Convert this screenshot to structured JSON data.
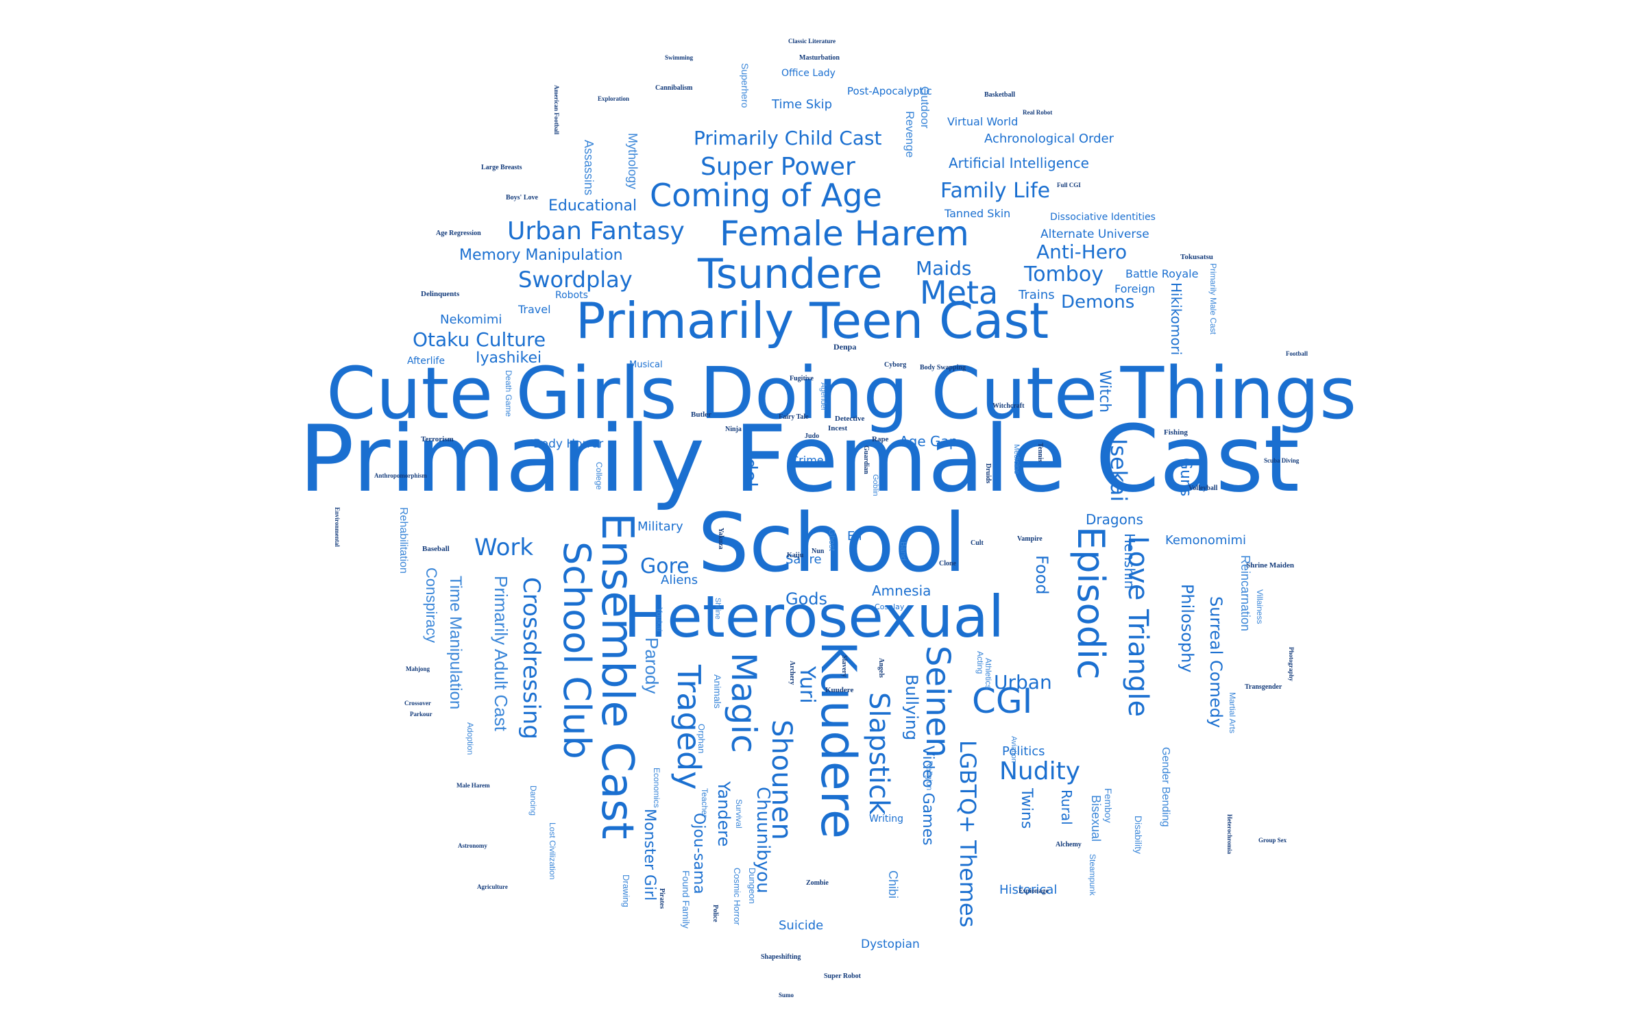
{
  "colors": {
    "primary": "#1a6fd0",
    "light": "#3a86d8",
    "dark": "#123a7a",
    "background": "#ffffff"
  },
  "words": [
    "Primarily Female Cast",
    "Cute Girls Doing Cute Things",
    "School",
    "Heterosexual",
    "Primarily Teen Cast",
    "Kuudere",
    "Ensemble Cast",
    "School Club",
    "Tsundere",
    "Episodic",
    "Female Harem",
    "Coming of Age",
    "Seinen",
    "Love Triangle",
    "CGI",
    "Magic",
    "Tragedy",
    "Crossdressing",
    "Slapstick",
    "Shounen",
    "Yuri",
    "Urban Fantasy",
    "Super Power",
    "Primarily Child Cast",
    "Family Life",
    "Meta",
    "Swordplay",
    "Otaku Culture",
    "Work",
    "Nudity",
    "Urban",
    "Isekai",
    "Anti-Hero",
    "Tomboy",
    "Demons",
    "Memory Manipulation",
    "Educational",
    "Artificial Intelligence",
    "Achronological Order",
    "Time Skip",
    "Office Lady",
    "Post-Apocalyptic",
    "Virtual World",
    "Maids",
    "Idol",
    "Parody",
    "Primarily Adult Cast",
    "Time Manipulation",
    "Conspiracy",
    "Rehabilitation",
    "Monster Girl",
    "Ojou-sama",
    "Yandere",
    "Chuunibyou",
    "Bullying",
    "Video Games",
    "LGBTQ+ Themes",
    "Twins",
    "Rural",
    "Bisexual",
    "Philosophy",
    "Surreal Comedy",
    "Reincarnation",
    "Henshin",
    "Guns",
    "Kemonomimi",
    "Dragons",
    "Gore",
    "Aliens",
    "Military",
    "Gods",
    "Amnesia",
    "Politics",
    "Historical",
    "Suicide",
    "Dystopian",
    "Chibi",
    "Gender Bending",
    "Femboy",
    "Disability",
    "Hikikomori",
    "Witch",
    "Battle Royale",
    "Foreign",
    "Trains",
    "Nekomimi",
    "Travel",
    "Iyashikei",
    "Afterlife",
    "Musical",
    "Body Horror",
    "Age Gap",
    "Crime",
    "Satire",
    "Elf",
    "Ghost",
    "Cosplay",
    "Food",
    "Acting",
    "Steampunk",
    "Dancing",
    "Adoption",
    "Lost Civilization",
    "Drawing",
    "Found Family",
    "Cosmic Horror",
    "Dungeon",
    "Survival",
    "Teacher",
    "Economics",
    "Animals",
    "Orphan",
    "Mythology",
    "Assassins",
    "Revenge",
    "Outdoor",
    "Superhero",
    "Tanned Skin",
    "Dissociative Identities",
    "Alternate Universe",
    "Robots",
    "Delinquents",
    "Terrorism",
    "Death Game",
    "College",
    "Baseball",
    "Martial Arts",
    "Primarily Male Cast",
    "Tokusatsu",
    "Villainess",
    "Shapeshifting",
    "Super Robot",
    "Cannibalism",
    "Masturbation",
    "Basketball",
    "Real Robot",
    "Full CGI",
    "Boys' Love",
    "Age Regression",
    "Rape",
    "Incest",
    "Detective",
    "Fishing",
    "Butler",
    "Ninja",
    "Yakuza",
    "Witchcraft",
    "Cyborg",
    "Body Swapping",
    "Fugitive",
    "Denpa",
    "Agender",
    "Fairy Tale",
    "Judo",
    "Guardian",
    "Vampire",
    "Medicine",
    "Tennis",
    "Volleyball",
    "Shrine Maiden",
    "Transgender",
    "Kaiju",
    "Nun",
    "Goblin",
    "Band",
    "Clone",
    "Cult",
    "Athletics",
    "Religion",
    "Writing",
    "Aviation",
    "Espionage",
    "Zombie",
    "Kuudere",
    "Shrine",
    "Youkai",
    "Slavery",
    "Archery",
    "Angels",
    "Druids",
    "Police",
    "Pirates",
    "Sumo",
    "Swimming",
    "Classic Literature",
    "Exploration",
    "American Football",
    "Large Breasts",
    "Anthropomorphism",
    "Environmental",
    "Parkour",
    "Male Harem",
    "Mahjong",
    "Crossover",
    "Astronomy",
    "Agriculture",
    "Photography",
    "Group Sex",
    "Alchemy",
    "Heterochromia",
    "Scuba Diving",
    "Football",
    "Chimera",
    "Samurai",
    "Ero Guro",
    "Puppetry",
    "Airsoft"
  ]
}
